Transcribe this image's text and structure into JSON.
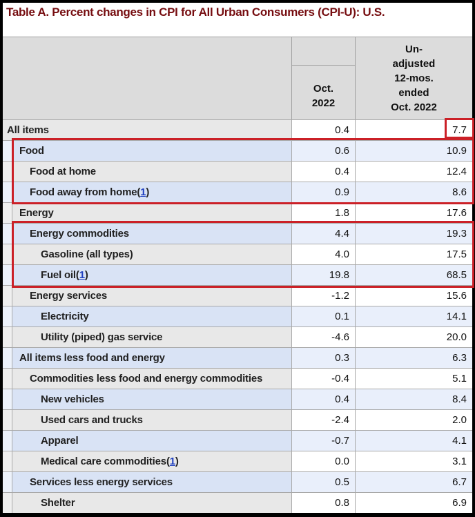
{
  "page": {
    "title": "Table A. Percent changes in CPI for All Urban Consumers (CPI-U): U.S."
  },
  "table": {
    "header": {
      "col_label": "",
      "col_oct": {
        "lines": [
          "Oct.",
          "2022"
        ]
      },
      "col_12mo": {
        "lines": [
          "Un-",
          "adjusted",
          "12-mos.",
          "ended",
          "Oct. 2022"
        ]
      }
    },
    "rows": [
      {
        "label": "All items",
        "level": 0,
        "oct": "0.4",
        "yr12": "7.7"
      },
      {
        "label": "Food",
        "level": 1,
        "oct": "0.6",
        "yr12": "10.9"
      },
      {
        "label": "Food at home",
        "level": 2,
        "oct": "0.4",
        "yr12": "12.4"
      },
      {
        "label": "Food away from home",
        "level": 2,
        "oct": "0.9",
        "yr12": "8.6",
        "footnote": {
          "open": "(",
          "num": "1",
          "close": ")"
        }
      },
      {
        "label": "Energy",
        "level": 1,
        "oct": "1.8",
        "yr12": "17.6"
      },
      {
        "label": "Energy commodities",
        "level": 2,
        "oct": "4.4",
        "yr12": "19.3"
      },
      {
        "label": "Gasoline (all types)",
        "level": 3,
        "oct": "4.0",
        "yr12": "17.5"
      },
      {
        "label": "Fuel oil",
        "level": 3,
        "oct": "19.8",
        "yr12": "68.5",
        "footnote": {
          "open": "(",
          "num": "1",
          "close": ")"
        }
      },
      {
        "label": "Energy services",
        "level": 2,
        "oct": "-1.2",
        "yr12": "15.6"
      },
      {
        "label": "Electricity",
        "level": 3,
        "oct": "0.1",
        "yr12": "14.1"
      },
      {
        "label": "Utility (piped) gas service",
        "level": 3,
        "oct": "-4.6",
        "yr12": "20.0"
      },
      {
        "label": "All items less food and energy",
        "level": 1,
        "oct": "0.3",
        "yr12": "6.3"
      },
      {
        "label": "Commodities less food and energy commodities",
        "level": 2,
        "oct": "-0.4",
        "yr12": "5.1"
      },
      {
        "label": "New vehicles",
        "level": 3,
        "oct": "0.4",
        "yr12": "8.4"
      },
      {
        "label": "Used cars and trucks",
        "level": 3,
        "oct": "-2.4",
        "yr12": "2.0"
      },
      {
        "label": "Apparel",
        "level": 3,
        "oct": "-0.7",
        "yr12": "4.1"
      },
      {
        "label": "Medical care commodities",
        "level": 3,
        "oct": "0.0",
        "yr12": "3.1",
        "footnote": {
          "open": "(",
          "num": "1",
          "close": ")"
        }
      },
      {
        "label": "Services less energy services",
        "level": 2,
        "oct": "0.5",
        "yr12": "6.7"
      },
      {
        "label": "Shelter",
        "level": 3,
        "oct": "0.8",
        "yr12": "6.9"
      }
    ]
  },
  "annotations": {
    "highlight_color": "#cb2027",
    "boxes": [
      {
        "target": "All items unadjusted 12-mo value 7.7"
      },
      {
        "target": "Food, Food at home, Food away from home rows"
      },
      {
        "target": "Energy commodities, Gasoline (all types), Fuel oil rows"
      }
    ]
  },
  "colors": {
    "title_maroon": "#760d10",
    "header_gray": "#dcdcdc",
    "row_gray": "#e8e8e8",
    "row_blue": "#d9e3f5",
    "data_blue": "#e9effb",
    "link_blue": "#2040c0",
    "border_gray": "#a9a9a9",
    "frame_black": "#000000"
  },
  "chart_data": {
    "type": "table",
    "title": "Table A. Percent changes in CPI for All Urban Consumers (CPI-U): U.S.",
    "columns": [
      "Oct. 2022",
      "Unadjusted 12-mos. ended Oct. 2022"
    ],
    "rows": [
      {
        "item": "All items",
        "oct_2022": 0.4,
        "unadjusted_12mo": 7.7
      },
      {
        "item": "Food",
        "oct_2022": 0.6,
        "unadjusted_12mo": 10.9
      },
      {
        "item": "Food at home",
        "oct_2022": 0.4,
        "unadjusted_12mo": 12.4
      },
      {
        "item": "Food away from home",
        "oct_2022": 0.9,
        "unadjusted_12mo": 8.6
      },
      {
        "item": "Energy",
        "oct_2022": 1.8,
        "unadjusted_12mo": 17.6
      },
      {
        "item": "Energy commodities",
        "oct_2022": 4.4,
        "unadjusted_12mo": 19.3
      },
      {
        "item": "Gasoline (all types)",
        "oct_2022": 4.0,
        "unadjusted_12mo": 17.5
      },
      {
        "item": "Fuel oil",
        "oct_2022": 19.8,
        "unadjusted_12mo": 68.5
      },
      {
        "item": "Energy services",
        "oct_2022": -1.2,
        "unadjusted_12mo": 15.6
      },
      {
        "item": "Electricity",
        "oct_2022": 0.1,
        "unadjusted_12mo": 14.1
      },
      {
        "item": "Utility (piped) gas service",
        "oct_2022": -4.6,
        "unadjusted_12mo": 20.0
      },
      {
        "item": "All items less food and energy",
        "oct_2022": 0.3,
        "unadjusted_12mo": 6.3
      },
      {
        "item": "Commodities less food and energy commodities",
        "oct_2022": -0.4,
        "unadjusted_12mo": 5.1
      },
      {
        "item": "New vehicles",
        "oct_2022": 0.4,
        "unadjusted_12mo": 8.4
      },
      {
        "item": "Used cars and trucks",
        "oct_2022": -2.4,
        "unadjusted_12mo": 2.0
      },
      {
        "item": "Apparel",
        "oct_2022": -0.7,
        "unadjusted_12mo": 4.1
      },
      {
        "item": "Medical care commodities",
        "oct_2022": 0.0,
        "unadjusted_12mo": 3.1
      },
      {
        "item": "Services less energy services",
        "oct_2022": 0.5,
        "unadjusted_12mo": 6.7
      },
      {
        "item": "Shelter",
        "oct_2022": 0.8,
        "unadjusted_12mo": 6.9
      }
    ]
  }
}
